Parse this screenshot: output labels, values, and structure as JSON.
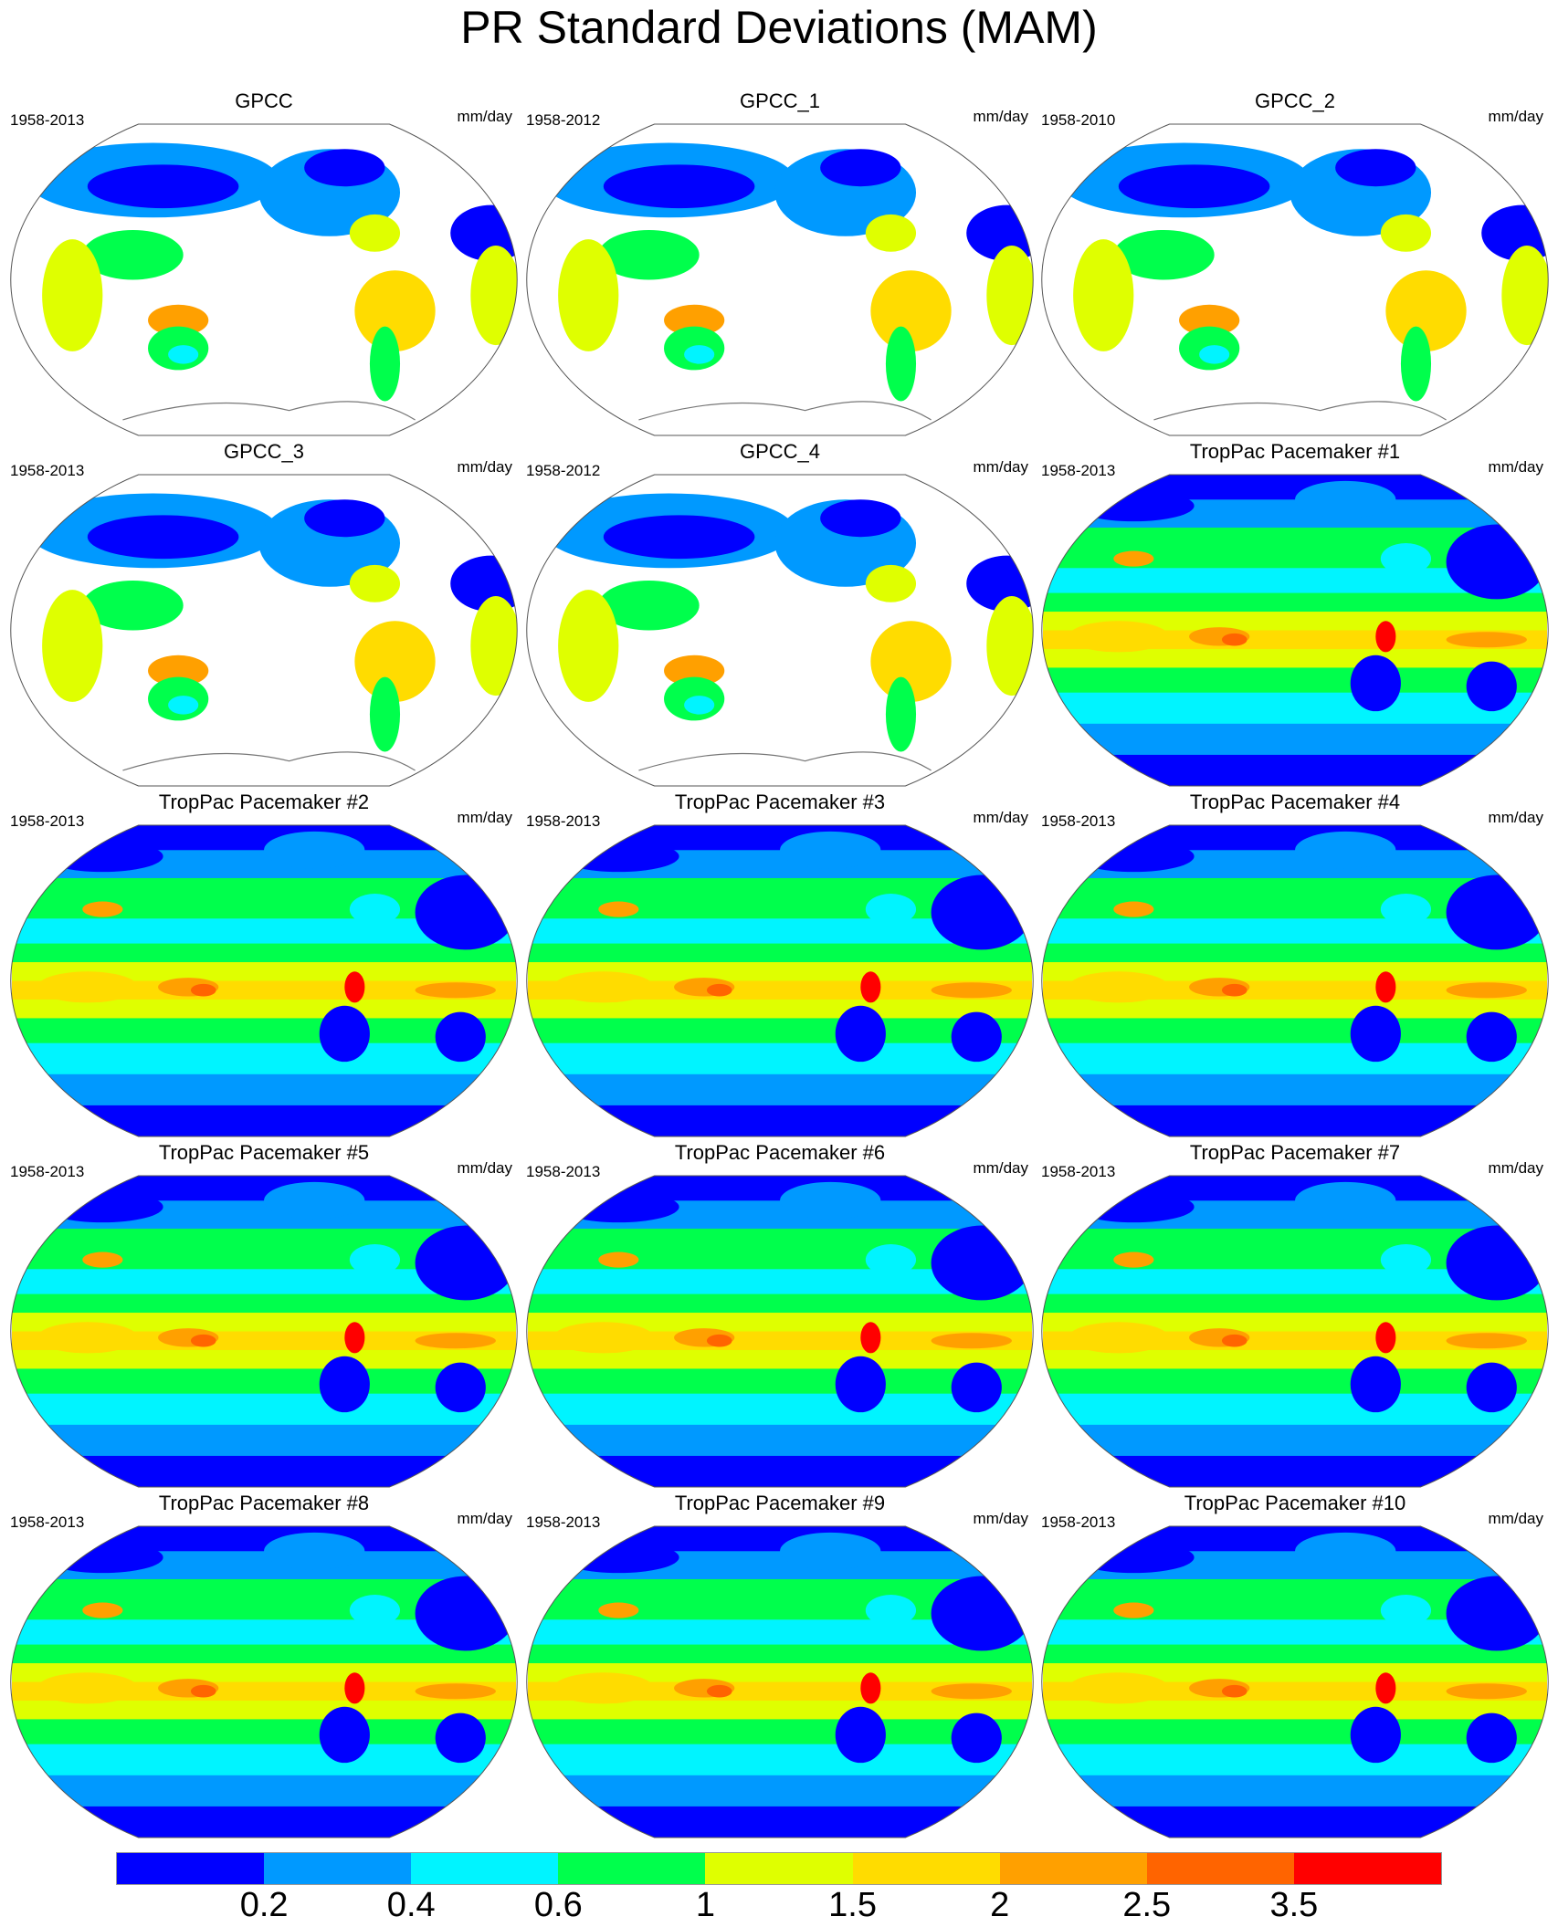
{
  "title": "PR Standard Deviations (MAM)",
  "units": "mm/day",
  "panels": [
    {
      "title": "GPCC",
      "period": "1958-2013",
      "kind": "observed"
    },
    {
      "title": "GPCC_1",
      "period": "1958-2012",
      "kind": "observed"
    },
    {
      "title": "GPCC_2",
      "period": "1958-2010",
      "kind": "observed"
    },
    {
      "title": "GPCC_3",
      "period": "1958-2013",
      "kind": "observed"
    },
    {
      "title": "GPCC_4",
      "period": "1958-2012",
      "kind": "observed"
    },
    {
      "title": "TropPac Pacemaker #1",
      "period": "1958-2013",
      "kind": "model"
    },
    {
      "title": "TropPac Pacemaker #2",
      "period": "1958-2013",
      "kind": "model"
    },
    {
      "title": "TropPac Pacemaker #3",
      "period": "1958-2013",
      "kind": "model"
    },
    {
      "title": "TropPac Pacemaker #4",
      "period": "1958-2013",
      "kind": "model"
    },
    {
      "title": "TropPac Pacemaker #5",
      "period": "1958-2013",
      "kind": "model"
    },
    {
      "title": "TropPac Pacemaker #6",
      "period": "1958-2013",
      "kind": "model"
    },
    {
      "title": "TropPac Pacemaker #7",
      "period": "1958-2013",
      "kind": "model"
    },
    {
      "title": "TropPac Pacemaker #8",
      "period": "1958-2013",
      "kind": "model"
    },
    {
      "title": "TropPac Pacemaker #9",
      "period": "1958-2013",
      "kind": "model"
    },
    {
      "title": "TropPac Pacemaker #10",
      "period": "1958-2013",
      "kind": "model"
    }
  ],
  "colorbar": {
    "labels": [
      "0.2",
      "0.4",
      "0.6",
      "1",
      "1.5",
      "2",
      "2.5",
      "3.5"
    ],
    "colors": [
      "#0000ff",
      "#0099ff",
      "#00f4ff",
      "#00ff4c",
      "#dfff00",
      "#ffdc00",
      "#ffa000",
      "#ff6400",
      "#ff0000"
    ]
  },
  "map_colors": {
    "coastline": "#777777",
    "border": "#555555"
  }
}
